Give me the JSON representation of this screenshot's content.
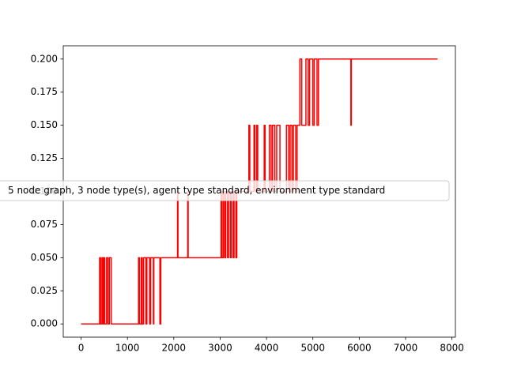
{
  "chart_data": {
    "type": "line",
    "series": [
      {
        "name": "5 node graph, 3 node type(s), agent type standard, environment type standard",
        "color": "#ff0000",
        "x": [
          0,
          400,
          400,
          420,
          420,
          450,
          450,
          470,
          470,
          490,
          490,
          510,
          510,
          550,
          550,
          580,
          580,
          610,
          610,
          650,
          650,
          1240,
          1240,
          1260,
          1260,
          1300,
          1300,
          1320,
          1320,
          1350,
          1350,
          1400,
          1400,
          1420,
          1420,
          1480,
          1480,
          1500,
          1500,
          1560,
          1560,
          1570,
          1570,
          1700,
          1700,
          1720,
          1720,
          2080,
          2080,
          2090,
          2090,
          2300,
          2300,
          2310,
          2310,
          3020,
          3020,
          3040,
          3040,
          3070,
          3070,
          3100,
          3100,
          3120,
          3120,
          3160,
          3160,
          3180,
          3180,
          3220,
          3220,
          3240,
          3240,
          3280,
          3280,
          3300,
          3300,
          3340,
          3340,
          3360,
          3360,
          3620,
          3620,
          3640,
          3640,
          3730,
          3730,
          3750,
          3750,
          3790,
          3790,
          3810,
          3810,
          3950,
          3950,
          3970,
          3970,
          4060,
          4060,
          4100,
          4100,
          4130,
          4130,
          4180,
          4180,
          4220,
          4220,
          4290,
          4290,
          4430,
          4430,
          4480,
          4480,
          4510,
          4510,
          4550,
          4550,
          4580,
          4580,
          4630,
          4630,
          4660,
          4660,
          4720,
          4720,
          4760,
          4760,
          4850,
          4850,
          4900,
          4900,
          4930,
          4930,
          5000,
          5000,
          5030,
          5030,
          5090,
          5090,
          5120,
          5120,
          5190,
          5820,
          5820,
          5830,
          5830,
          7690
        ],
        "values": [
          0,
          0,
          0.05,
          0.05,
          0,
          0,
          0.05,
          0.05,
          0,
          0,
          0.05,
          0.05,
          0,
          0,
          0.05,
          0.05,
          0,
          0,
          0.05,
          0.05,
          0,
          0,
          0.05,
          0.05,
          0,
          0,
          0.05,
          0.05,
          0,
          0,
          0.05,
          0.05,
          0,
          0,
          0.05,
          0.05,
          0,
          0,
          0.05,
          0.05,
          0,
          0,
          0.05,
          0.05,
          0,
          0,
          0.05,
          0.05,
          0.1,
          0.1,
          0.05,
          0.05,
          0.1,
          0.1,
          0.05,
          0.05,
          0.1,
          0.1,
          0.05,
          0.05,
          0.1,
          0.1,
          0.05,
          0.05,
          0.1,
          0.1,
          0.05,
          0.05,
          0.1,
          0.1,
          0.05,
          0.05,
          0.1,
          0.1,
          0.05,
          0.05,
          0.1,
          0.1,
          0.05,
          0.05,
          0.1,
          0.1,
          0.15,
          0.15,
          0.1,
          0.1,
          0.15,
          0.15,
          0.1,
          0.1,
          0.15,
          0.15,
          0.1,
          0.1,
          0.15,
          0.15,
          0.1,
          0.1,
          0.15,
          0.15,
          0.1,
          0.1,
          0.15,
          0.15,
          0.1,
          0.1,
          0.15,
          0.15,
          0.1,
          0.1,
          0.15,
          0.15,
          0.1,
          0.1,
          0.15,
          0.15,
          0.1,
          0.1,
          0.15,
          0.15,
          0.1,
          0.1,
          0.15,
          0.15,
          0.2,
          0.2,
          0.15,
          0.15,
          0.2,
          0.2,
          0.15,
          0.15,
          0.2,
          0.2,
          0.15,
          0.15,
          0.2,
          0.2,
          0.15,
          0.15,
          0.2,
          0.2,
          0.2,
          0.15,
          0.15,
          0.2,
          0.2
        ]
      }
    ],
    "xlim": [
      -384.5,
      8074.5
    ],
    "ylim": [
      -0.01,
      0.21
    ],
    "xticks": [
      0,
      1000,
      2000,
      3000,
      4000,
      5000,
      6000,
      7000,
      8000
    ],
    "yticks": [
      {
        "value": 0,
        "label": "0.000"
      },
      {
        "value": 0.025,
        "label": "0.025"
      },
      {
        "value": 0.05,
        "label": "0.050"
      },
      {
        "value": 0.075,
        "label": "0.075"
      },
      {
        "value": 0.1,
        "label": "0.100"
      },
      {
        "value": 0.125,
        "label": "0.125"
      },
      {
        "value": 0.15,
        "label": "0.150"
      },
      {
        "value": 0.175,
        "label": "0.175"
      },
      {
        "value": 0.2,
        "label": "0.200"
      }
    ]
  }
}
